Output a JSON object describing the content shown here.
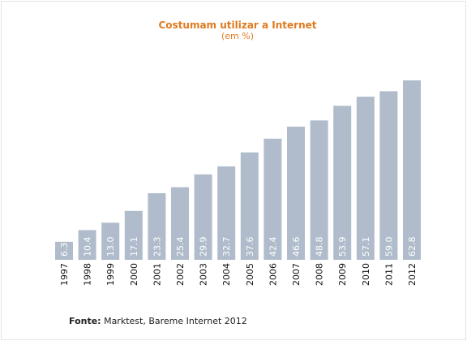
{
  "chart_data": {
    "type": "bar",
    "title": "Costumam utilizar a Internet",
    "subtitle": "(em %)",
    "categories": [
      "1997",
      "1998",
      "1999",
      "2000",
      "2001",
      "2002",
      "2003",
      "2004",
      "2005",
      "2006",
      "2007",
      "2008",
      "2009",
      "2010",
      "2011",
      "2012"
    ],
    "values": [
      6.3,
      10.4,
      13.0,
      17.1,
      23.3,
      25.4,
      29.9,
      32.7,
      37.6,
      42.4,
      46.6,
      48.8,
      53.9,
      57.1,
      59.0,
      62.8
    ],
    "value_labels": [
      "6.3",
      "10.4",
      "13.0",
      "17.1",
      "23.3",
      "25.4",
      "29.9",
      "32.7",
      "37.6",
      "42.4",
      "46.6",
      "48.8",
      "53.9",
      "57.1",
      "59.0",
      "62.8"
    ],
    "xlabel": "",
    "ylabel": "",
    "ylim": [
      0,
      62.8
    ],
    "grid": false,
    "legend": "none",
    "colors": {
      "bar": "#b0bccb",
      "title": "#e07a1f",
      "value_label": "#ffffff",
      "tick_label": "#111111"
    }
  },
  "source": {
    "label": "Fonte:",
    "text": " Marktest, Bareme Internet 2012"
  }
}
